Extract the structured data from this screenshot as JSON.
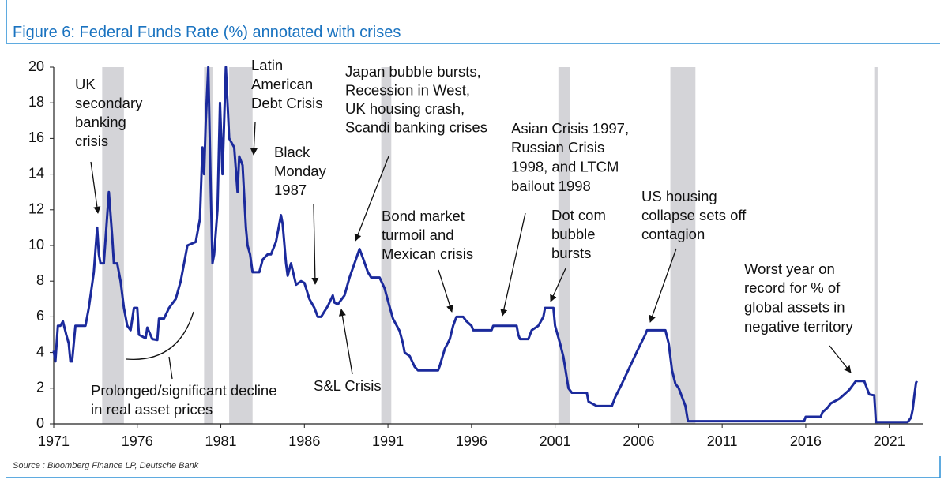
{
  "chart_data": {
    "type": "line",
    "title": "Figure 6: Federal Funds Rate (%) annotated with crises",
    "source": "Source : Bloomberg Finance LP, Deutsche Bank",
    "color": "#1b2a9c",
    "shade_color": "#d4d4d8",
    "xlim": [
      1971,
      2023
    ],
    "ylim": [
      0,
      20
    ],
    "xticks": [
      1971,
      1976,
      1981,
      1986,
      1991,
      1996,
      2001,
      2006,
      2011,
      2016,
      2021
    ],
    "yticks": [
      0,
      2,
      4,
      6,
      8,
      10,
      12,
      14,
      16,
      18,
      20
    ],
    "shaded_periods": [
      [
        1973.9,
        1975.2
      ],
      [
        1980.0,
        1980.5
      ],
      [
        1981.5,
        1982.9
      ],
      [
        1990.6,
        1991.2
      ],
      [
        2001.2,
        2001.9
      ],
      [
        2007.9,
        2009.4
      ],
      [
        2020.1,
        2020.3
      ]
    ],
    "x": [
      1971.0,
      1971.1,
      1971.25,
      1971.4,
      1971.55,
      1971.75,
      1971.9,
      1972.0,
      1972.1,
      1972.3,
      1972.6,
      1972.9,
      1973.1,
      1973.4,
      1973.6,
      1973.7,
      1973.8,
      1974.0,
      1974.3,
      1974.5,
      1974.6,
      1974.8,
      1975.0,
      1975.2,
      1975.4,
      1975.6,
      1975.8,
      1976.0,
      1976.1,
      1976.5,
      1976.6,
      1976.9,
      1977.2,
      1977.3,
      1977.6,
      1977.9,
      1978.3,
      1978.6,
      1979.0,
      1979.5,
      1979.75,
      1979.9,
      1980.0,
      1980.1,
      1980.25,
      1980.4,
      1980.5,
      1980.6,
      1980.8,
      1980.95,
      1981.1,
      1981.3,
      1981.5,
      1981.8,
      1982.0,
      1982.1,
      1982.3,
      1982.5,
      1982.6,
      1982.75,
      1982.9,
      1983.3,
      1983.5,
      1983.8,
      1984.0,
      1984.3,
      1984.6,
      1984.7,
      1984.9,
      1985.0,
      1985.2,
      1985.5,
      1985.8,
      1986.0,
      1986.3,
      1986.6,
      1986.8,
      1987.0,
      1987.4,
      1987.7,
      1987.8,
      1988.0,
      1988.4,
      1988.7,
      1989.0,
      1989.3,
      1989.5,
      1989.8,
      1990.0,
      1990.5,
      1990.8,
      1991.0,
      1991.3,
      1991.7,
      1991.9,
      1992.0,
      1992.3,
      1992.6,
      1992.8,
      1994.0,
      1994.1,
      1994.4,
      1994.7,
      1994.9,
      1995.1,
      1995.5,
      1995.7,
      1996.0,
      1996.1,
      1997.2,
      1997.3,
      1998.7,
      1998.8,
      1998.9,
      1999.4,
      1999.6,
      2000.0,
      2000.3,
      2000.4,
      2000.9,
      2001.0,
      2001.3,
      2001.5,
      2001.8,
      2002.0,
      2002.9,
      2003.0,
      2003.5,
      2004.4,
      2004.6,
      2005.0,
      2005.5,
      2006.0,
      2006.4,
      2006.5,
      2007.6,
      2007.8,
      2008.0,
      2008.2,
      2008.4,
      2008.8,
      2008.95,
      2015.9,
      2016.0,
      2016.9,
      2017.0,
      2017.3,
      2017.5,
      2018.0,
      2018.3,
      2018.6,
      2018.8,
      2019.0,
      2019.5,
      2019.6,
      2019.8,
      2020.1,
      2020.2,
      2022.1,
      2022.3,
      2022.4,
      2022.5,
      2022.6,
      2022.65
    ],
    "values": [
      4.1,
      3.5,
      5.5,
      5.5,
      5.75,
      5.0,
      4.5,
      3.5,
      3.5,
      5.5,
      5.5,
      5.5,
      6.5,
      8.5,
      11.0,
      9.5,
      9.0,
      9.0,
      13.0,
      10.5,
      9.0,
      9.0,
      8.0,
      6.5,
      5.5,
      5.25,
      6.5,
      6.5,
      5.0,
      4.8,
      5.4,
      4.75,
      4.7,
      5.9,
      5.9,
      6.5,
      7.0,
      8.0,
      10.0,
      10.2,
      11.5,
      15.5,
      14.0,
      17.0,
      20.0,
      13.0,
      9.0,
      9.5,
      12.0,
      18.0,
      14.0,
      20.0,
      16.0,
      15.5,
      13.0,
      15.0,
      14.5,
      11.0,
      10.0,
      9.5,
      8.5,
      8.5,
      9.2,
      9.5,
      9.5,
      10.2,
      11.7,
      11.2,
      9.0,
      8.3,
      9.0,
      7.8,
      8.0,
      7.9,
      7.0,
      6.5,
      6.0,
      6.0,
      6.6,
      7.2,
      6.8,
      6.7,
      7.2,
      8.2,
      9.0,
      9.8,
      9.3,
      8.5,
      8.2,
      8.2,
      7.6,
      6.9,
      5.9,
      5.2,
      4.5,
      4.0,
      3.8,
      3.2,
      3.0,
      3.0,
      3.25,
      4.2,
      4.75,
      5.5,
      6.0,
      6.0,
      5.75,
      5.5,
      5.25,
      5.25,
      5.5,
      5.5,
      5.0,
      4.75,
      4.75,
      5.25,
      5.5,
      6.0,
      6.5,
      6.5,
      5.5,
      4.5,
      3.75,
      2.0,
      1.75,
      1.75,
      1.25,
      1.0,
      1.0,
      1.5,
      2.25,
      3.25,
      4.25,
      5.0,
      5.25,
      5.25,
      4.5,
      3.0,
      2.25,
      2.0,
      1.0,
      0.15,
      0.15,
      0.4,
      0.4,
      0.65,
      0.9,
      1.15,
      1.4,
      1.65,
      1.9,
      2.15,
      2.4,
      2.4,
      2.15,
      1.65,
      1.6,
      0.1,
      0.1,
      0.35,
      0.8,
      1.6,
      2.3,
      2.4
    ],
    "annotations": [
      {
        "lines": [
          "UK",
          "secondary",
          "banking",
          "crisis"
        ]
      },
      {
        "lines": [
          "Latin",
          "American",
          "Debt Crisis"
        ]
      },
      {
        "lines": [
          "Black",
          "Monday",
          "1987"
        ]
      },
      {
        "lines": [
          "Japan bubble bursts,",
          "Recession in West,",
          "UK housing crash,",
          "Scandi banking crises"
        ]
      },
      {
        "lines": [
          "Asian Crisis 1997,",
          "Russian Crisis",
          "1998, and LTCM",
          "bailout 1998"
        ]
      },
      {
        "lines": [
          "Bond market",
          "turmoil and",
          "Mexican crisis"
        ]
      },
      {
        "lines": [
          "Dot com",
          "bubble",
          "bursts"
        ]
      },
      {
        "lines": [
          "US housing",
          "collapse sets off",
          "contagion"
        ]
      },
      {
        "lines": [
          "Worst year on",
          "record for % of",
          "global assets in",
          "negative territory"
        ]
      },
      {
        "lines": [
          "S&L Crisis"
        ]
      },
      {
        "lines": [
          "Prolonged/significant decline",
          "in real asset prices"
        ]
      }
    ]
  }
}
